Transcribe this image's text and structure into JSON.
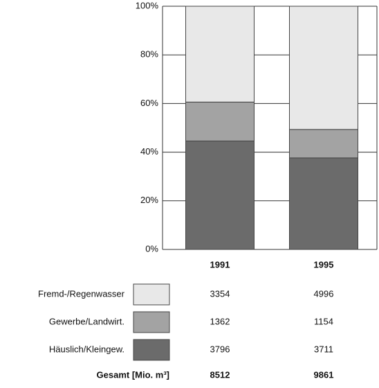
{
  "chart_data": {
    "type": "bar",
    "stacked": "percent",
    "categories": [
      "1991",
      "1995"
    ],
    "series": [
      {
        "name": "Häuslich/Kleingew.",
        "color": "#6b6b6b",
        "values": [
          3796,
          3711
        ]
      },
      {
        "name": "Gewerbe/Landwirt.",
        "color": "#a3a3a3",
        "values": [
          1362,
          1154
        ]
      },
      {
        "name": "Fremd-/Regenwasser",
        "color": "#e8e8e8",
        "values": [
          3354,
          4996
        ]
      }
    ],
    "totals_label": "Gesamt [Mio. m³]",
    "totals": [
      8512,
      9861
    ],
    "ylim": [
      0,
      100
    ],
    "yticks": [
      {
        "value": 0,
        "label": "0%"
      },
      {
        "value": 20,
        "label": "20%"
      },
      {
        "value": 40,
        "label": "40%"
      },
      {
        "value": 60,
        "label": "60%"
      },
      {
        "value": 80,
        "label": "80%"
      },
      {
        "value": 100,
        "label": "100%"
      }
    ],
    "grid": true
  }
}
